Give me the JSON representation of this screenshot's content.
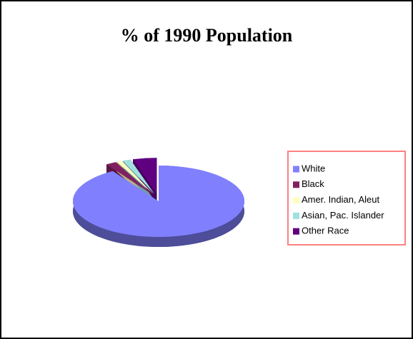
{
  "chart_data": {
    "type": "pie3d",
    "title": "% of 1990 Population",
    "categories": [
      "White",
      "Black",
      "Amer. Indian, Aleut",
      "Asian, Pac. Islander",
      "Other Race"
    ],
    "values": [
      91,
      2,
      1,
      1.5,
      4.5
    ],
    "colors": [
      "#8080ff",
      "#802060",
      "#ffffc0",
      "#a0e0e0",
      "#600080"
    ],
    "legend": "right"
  }
}
